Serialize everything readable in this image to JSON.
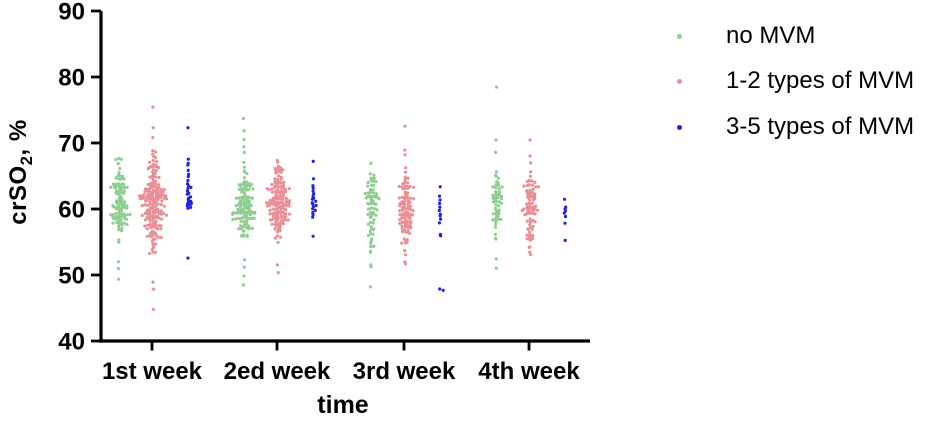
{
  "figure": {
    "y_axis": {
      "label_pre": "crSO",
      "label_sub": "2",
      "label_post": ", %"
    },
    "x_axis": {
      "label": "time"
    }
  },
  "chart_data": {
    "type": "scatter",
    "variant": "beeswarm",
    "title": "",
    "xlabel": "time",
    "ylabel": "crSO2, %",
    "ylim": [
      40,
      90
    ],
    "yticks": [
      40,
      50,
      60,
      70,
      80,
      90
    ],
    "grid": false,
    "legend_position": "right-top",
    "categories": [
      "1st week",
      "2ed week",
      "3rd week",
      "4th week"
    ],
    "series": [
      {
        "name": "no MVM",
        "color": "#8FCD90",
        "clusters": [
          {
            "n": 100,
            "mean": 61.2,
            "sd": 2.8,
            "min": 53.5,
            "max": 68.2,
            "extra": [
              52.0,
              51.0,
              49.4
            ]
          },
          {
            "n": 115,
            "mean": 60.8,
            "sd": 3.1,
            "min": 53.0,
            "max": 67.5,
            "extra": [
              73.8,
              71.9,
              70.6,
              69.5,
              68.6,
              52.3,
              51.2,
              49.9,
              48.5
            ]
          },
          {
            "n": 72,
            "mean": 59.6,
            "sd": 3.4,
            "min": 52.5,
            "max": 67.0,
            "extra": [
              51.5,
              51.3,
              48.2
            ]
          },
          {
            "n": 52,
            "mean": 60.3,
            "sd": 3.4,
            "min": 50.6,
            "max": 67.2,
            "extra": [
              78.5,
              70.4,
              68.6
            ]
          }
        ]
      },
      {
        "name": "1-2 types of MVM",
        "color": "#E89095",
        "clusters": [
          {
            "n": 185,
            "mean": 61.0,
            "sd": 3.8,
            "min": 50.5,
            "max": 70.0,
            "extra": [
              75.5,
              72.3,
              70.9,
              48.9,
              47.8,
              44.8
            ]
          },
          {
            "n": 145,
            "mean": 61.2,
            "sd": 2.9,
            "min": 52.8,
            "max": 67.6,
            "extra": [
              51.5,
              50.3
            ]
          },
          {
            "n": 100,
            "mean": 59.7,
            "sd": 3.2,
            "min": 50.9,
            "max": 67.0,
            "extra": [
              72.6,
              69.0,
              68.2
            ]
          },
          {
            "n": 78,
            "mean": 59.6,
            "sd": 3.2,
            "min": 52.4,
            "max": 66.0,
            "extra": [
              70.4,
              68.0,
              67.0
            ]
          }
        ]
      },
      {
        "name": "3-5 types of MVM",
        "color": "#2222DE",
        "clusters": [
          {
            "values": [
              72.3,
              67.5,
              66.9,
              66.6,
              65.9,
              65.3,
              64.9,
              64.4,
              63.9,
              63.6,
              63.3,
              63.1,
              62.6,
              62.4,
              62.2,
              61.9,
              61.7,
              61.5,
              61.2,
              61.0,
              60.9,
              60.7,
              60.6,
              60.4,
              60.3,
              60.1,
              52.5
            ]
          },
          {
            "values": [
              67.2,
              64.5,
              63.6,
              63.1,
              62.7,
              62.3,
              62.0,
              61.7,
              61.4,
              61.2,
              61.0,
              60.8,
              60.6,
              60.3,
              60.1,
              59.8,
              59.5,
              59.1,
              58.8,
              55.9
            ]
          },
          {
            "values": [
              63.4,
              62.0,
              61.4,
              60.8,
              60.3,
              59.8,
              59.3,
              58.9,
              58.4,
              57.9,
              56.2,
              55.9,
              47.9,
              47.6
            ]
          },
          {
            "values": [
              61.5,
              60.3,
              60.0,
              59.7,
              59.4,
              58.9,
              57.8,
              55.2
            ]
          }
        ]
      }
    ]
  }
}
